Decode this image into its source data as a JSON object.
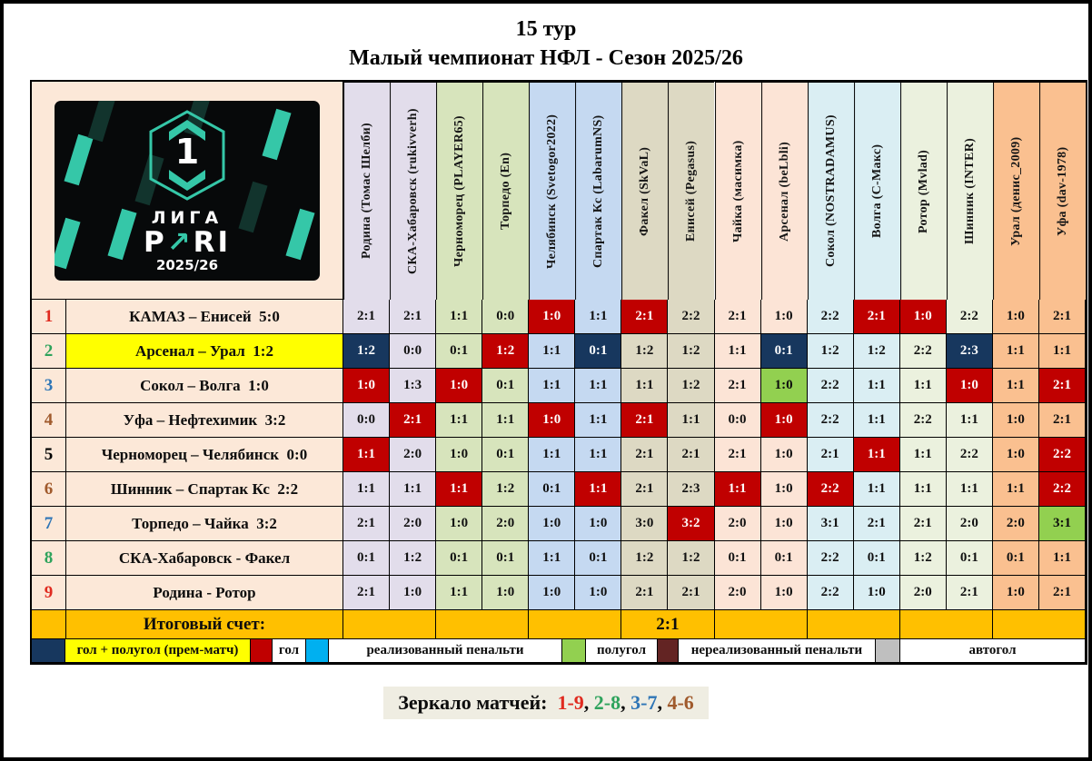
{
  "title": {
    "line1": "15 тур",
    "line2": "Малый чемпионат НФЛ - Сезон 2025/26"
  },
  "logo": {
    "number": "1",
    "league": "ЛИГА",
    "brand_prefix": "P",
    "brand_arrow": "↗",
    "brand_suffix": "RI",
    "brand_full": "PARI",
    "season": "2025/26"
  },
  "colors": {
    "goal_red": "#C00000",
    "goal_plus_half_navy": "#17375E",
    "half_goal_green": "#92D050",
    "penalty_scored_cyan": "#00B0F0",
    "penalty_missed_brown": "#632423",
    "own_goal_gray": "#BFBFBF",
    "final_row_gold": "#FFC000",
    "highlight_yellow": "#FFFF00"
  },
  "table": {
    "columns": [
      {
        "label": "Родина (Томас Шелби)",
        "bg": "#E2DDEB"
      },
      {
        "label": "СКА-Хабаровск (rukivverh)",
        "bg": "#E2DDEB"
      },
      {
        "label": "Черноморец (PLAYER65)",
        "bg": "#D7E4BC"
      },
      {
        "label": "Торпедо (En)",
        "bg": "#D7E4BC"
      },
      {
        "label": "Челябинск (Svetogor2022)",
        "bg": "#C5D9F1"
      },
      {
        "label": "Спартак Кс  (LabarumNS)",
        "bg": "#C5D9F1"
      },
      {
        "label": "Факел (SkVaL)",
        "bg": "#DDD9C3"
      },
      {
        "label": "Енисей (Pegasus)",
        "bg": "#DDD9C3"
      },
      {
        "label": "Чайка (масимка)",
        "bg": "#FCE4D6"
      },
      {
        "label": "Арсенал (beLbli)",
        "bg": "#FCE4D6"
      },
      {
        "label": "Сокол (NOSTRADAMUS)",
        "bg": "#DAEEF3"
      },
      {
        "label": "Волга (С-Макс)",
        "bg": "#DAEEF3"
      },
      {
        "label": "Ротор (Mvlad)",
        "bg": "#EBF1DE"
      },
      {
        "label": "Шинник (INTER)",
        "bg": "#EBF1DE"
      },
      {
        "label": "Урал (денис_2009)",
        "bg": "#FAC090"
      },
      {
        "label": "Уфа (dav-1978)",
        "bg": "#FAC090"
      }
    ],
    "rows": [
      {
        "num": "1",
        "num_color": "#E02B20",
        "match": "КАМАЗ – Енисей  5:0",
        "label_bg": "#FCE8D8",
        "cells": [
          "2:1",
          "2:1",
          "1:1",
          "0:0",
          "1:0 red",
          "1:1",
          "2:1 red",
          "2:2",
          "2:1",
          "1:0",
          "2:2",
          "2:1 red",
          "1:0 red",
          "2:2",
          "1:0",
          "2:1"
        ]
      },
      {
        "num": "2",
        "num_color": "#2EA35C",
        "match": "Арсенал – Урал  1:2",
        "label_bg": "#FFFF00",
        "cells": [
          "1:2 navy",
          "0:0",
          "0:1",
          "1:2 red",
          "1:1",
          "0:1 navy",
          "1:2",
          "1:2",
          "1:1",
          "0:1 navy",
          "1:2",
          "1:2",
          "2:2",
          "2:3 navy",
          "1:1",
          "1:1"
        ]
      },
      {
        "num": "3",
        "num_color": "#2E75B6",
        "match": "Сокол – Волга  1:0",
        "label_bg": "#FCE8D8",
        "cells": [
          "1:0 red",
          "1:3",
          "1:0 red",
          "0:1",
          "1:1",
          "1:1",
          "1:1",
          "1:2",
          "2:1",
          "1:0 green",
          "2:2",
          "1:1",
          "1:1",
          "1:0 red",
          "1:1",
          "2:1 red"
        ]
      },
      {
        "num": "4",
        "num_color": "#A05A2C",
        "match": "Уфа – Нефтехимик  3:2",
        "label_bg": "#FCE8D8",
        "cells": [
          "0:0",
          "2:1 red",
          "1:1",
          "1:1",
          "1:0 red",
          "1:1",
          "2:1 red",
          "1:1",
          "0:0",
          "1:0 red",
          "2:2",
          "1:1",
          "2:2",
          "1:1",
          "1:0",
          "2:1"
        ]
      },
      {
        "num": "5",
        "num_color": "#000000",
        "match": "Черноморец – Челябинск  0:0",
        "label_bg": "#FCE8D8",
        "cells": [
          "1:1 red",
          "2:0",
          "1:0",
          "0:1",
          "1:1",
          "1:1",
          "2:1",
          "2:1",
          "2:1",
          "1:0",
          "2:1",
          "1:1 red",
          "1:1",
          "2:2",
          "1:0",
          "2:2 red"
        ]
      },
      {
        "num": "6",
        "num_color": "#A05A2C",
        "match": "Шинник – Спартак Кс  2:2",
        "label_bg": "#FCE8D8",
        "cells": [
          "1:1",
          "1:1",
          "1:1 red",
          "1:2",
          "0:1",
          "1:1 red",
          "2:1",
          "2:3",
          "1:1 red",
          "1:0",
          "2:2 red",
          "1:1",
          "1:1",
          "1:1",
          "1:1",
          "2:2 red"
        ]
      },
      {
        "num": "7",
        "num_color": "#2E75B6",
        "match": "Торпедо – Чайка  3:2",
        "label_bg": "#FCE8D8",
        "cells": [
          "2:1",
          "2:0",
          "1:0",
          "2:0",
          "1:0",
          "1:0",
          "3:0",
          "3:2 red",
          "2:0",
          "1:0",
          "3:1",
          "2:1",
          "2:1",
          "2:0",
          "2:0",
          "3:1 green"
        ]
      },
      {
        "num": "8",
        "num_color": "#2EA35C",
        "match": "СКА-Хабаровск - Факел",
        "label_bg": "#FCE8D8",
        "cells": [
          "0:1",
          "1:2",
          "0:1",
          "0:1",
          "1:1",
          "0:1",
          "1:2",
          "1:2",
          "0:1",
          "0:1",
          "2:2",
          "0:1",
          "1:2",
          "0:1",
          "0:1",
          "1:1"
        ]
      },
      {
        "num": "9",
        "num_color": "#E02B20",
        "match": "Родина - Ротор",
        "label_bg": "#FCE8D8",
        "cells": [
          "2:1",
          "1:0",
          "1:1",
          "1:0",
          "1:0",
          "1:0",
          "2:1",
          "2:1",
          "2:0",
          "1:0",
          "2:2",
          "1:0",
          "2:0",
          "2:1",
          "1:0",
          "2:1"
        ]
      }
    ],
    "final_row": {
      "label": "Итоговый счет:",
      "pair_values": [
        "",
        "",
        "",
        "2:1",
        "",
        "",
        "",
        ""
      ]
    }
  },
  "legend": [
    {
      "swatch": "#17375E",
      "label": "гол + полугол  (прем-матч)",
      "label_bg": "#FFFF00"
    },
    {
      "swatch": "#C00000",
      "label": "гол",
      "label_bg": "#FFFFFF"
    },
    {
      "swatch": "#00B0F0",
      "label": "реализованный  пенальти",
      "label_bg": "#FFFFFF"
    },
    {
      "swatch": "#92D050",
      "label": "полугол",
      "label_bg": "#FFFFFF"
    },
    {
      "swatch": "#632423",
      "label": "нереализованный пенальти",
      "label_bg": "#FFFFFF"
    },
    {
      "swatch": "#BFBFBF",
      "label": "автогол",
      "label_bg": "#FFFFFF"
    }
  ],
  "mirror": {
    "label": "Зеркало матчей: ",
    "pairs": [
      {
        "text": "1-9",
        "color": "#E02B20"
      },
      {
        "text": "2-8",
        "color": "#2EA35C"
      },
      {
        "text": "3-7",
        "color": "#2E75B6"
      },
      {
        "text": "4-6",
        "color": "#A05A2C"
      }
    ],
    "separator": ", "
  }
}
